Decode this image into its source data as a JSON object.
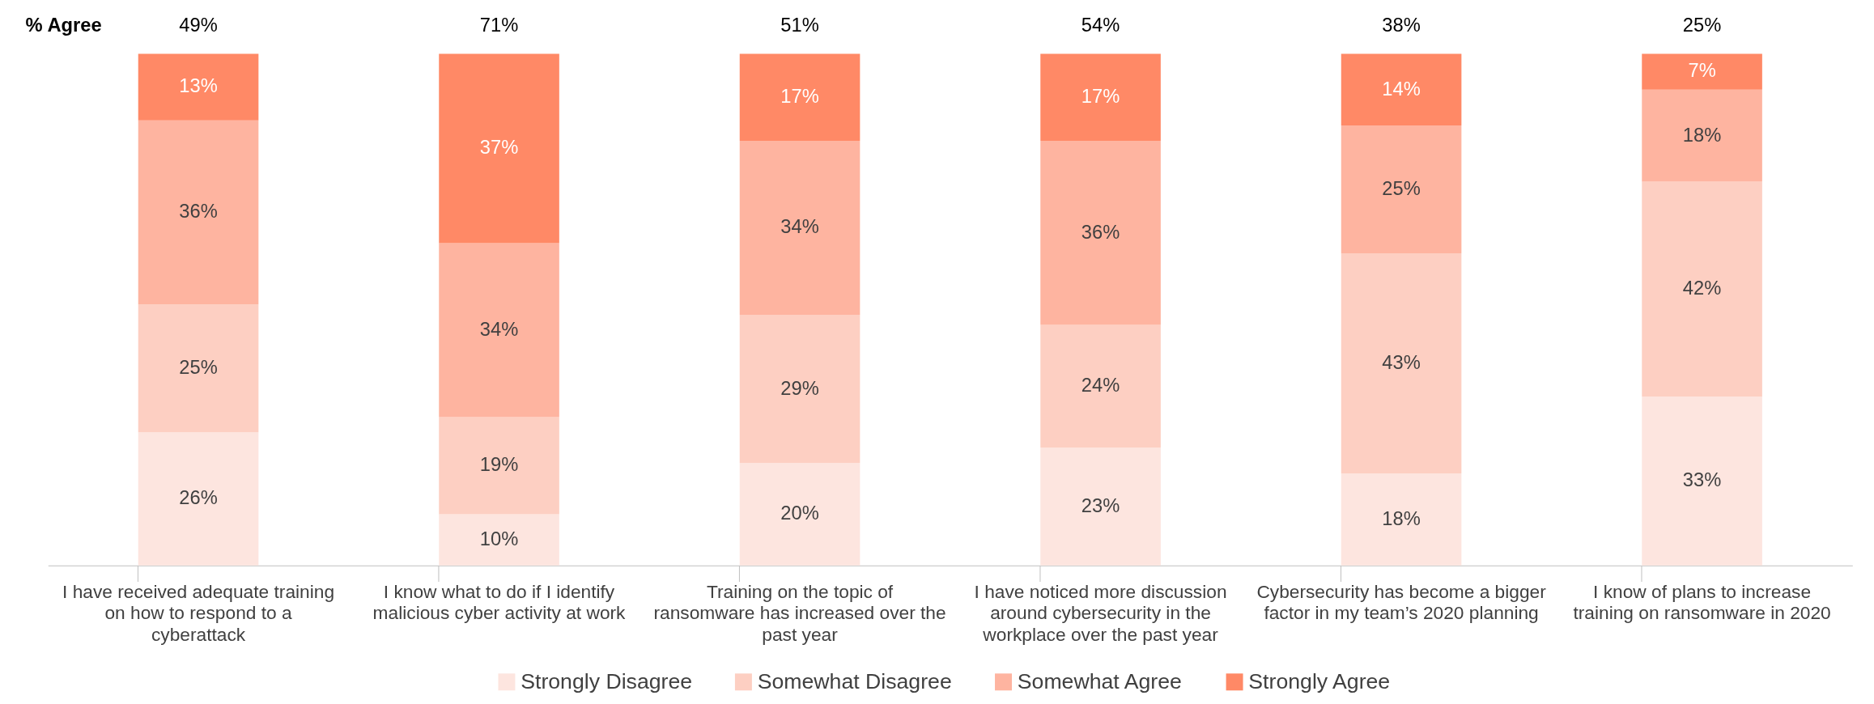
{
  "chart_data": {
    "type": "bar",
    "stacked": true,
    "legend": "bottom",
    "categories": [
      "I have received adequate training on how to respond to a cyberattack",
      "I know what to do if I identify malicious cyber activity at work",
      "Training on the topic of ransomware has increased over the past year",
      "I have noticed more discussion around cybersecurity in the workplace over the past year",
      "Cybersecurity has become a bigger factor in my team’s 2020 planning",
      "I know of plans to increase training on ransomware in 2020"
    ],
    "series": [
      {
        "name": "Strongly Disagree",
        "color": "#fde5df",
        "values": [
          26,
          10,
          20,
          23,
          18,
          33
        ],
        "value_labels": [
          "26%",
          "10%",
          "20%",
          "23%",
          "18%",
          "33%"
        ]
      },
      {
        "name": "Somewhat Disagree",
        "color": "#fdcfc2",
        "values": [
          25,
          19,
          29,
          24,
          43,
          42
        ],
        "value_labels": [
          "25%",
          "19%",
          "29%",
          "24%",
          "43%",
          "42%"
        ]
      },
      {
        "name": "Somewhat Agree",
        "color": "#feb4a0",
        "values": [
          36,
          34,
          34,
          36,
          25,
          18
        ],
        "value_labels": [
          "36%",
          "34%",
          "34%",
          "36%",
          "25%",
          "18%"
        ]
      },
      {
        "name": "Strongly Agree",
        "color": "#ff8966",
        "values": [
          13,
          37,
          17,
          17,
          14,
          7
        ],
        "value_labels": [
          "13%",
          "37%",
          "17%",
          "17%",
          "14%",
          "7%"
        ]
      }
    ],
    "annotations": [
      "% Agree",
      "49%",
      "71%",
      "51%",
      "54%",
      "38%",
      "25%"
    ]
  }
}
